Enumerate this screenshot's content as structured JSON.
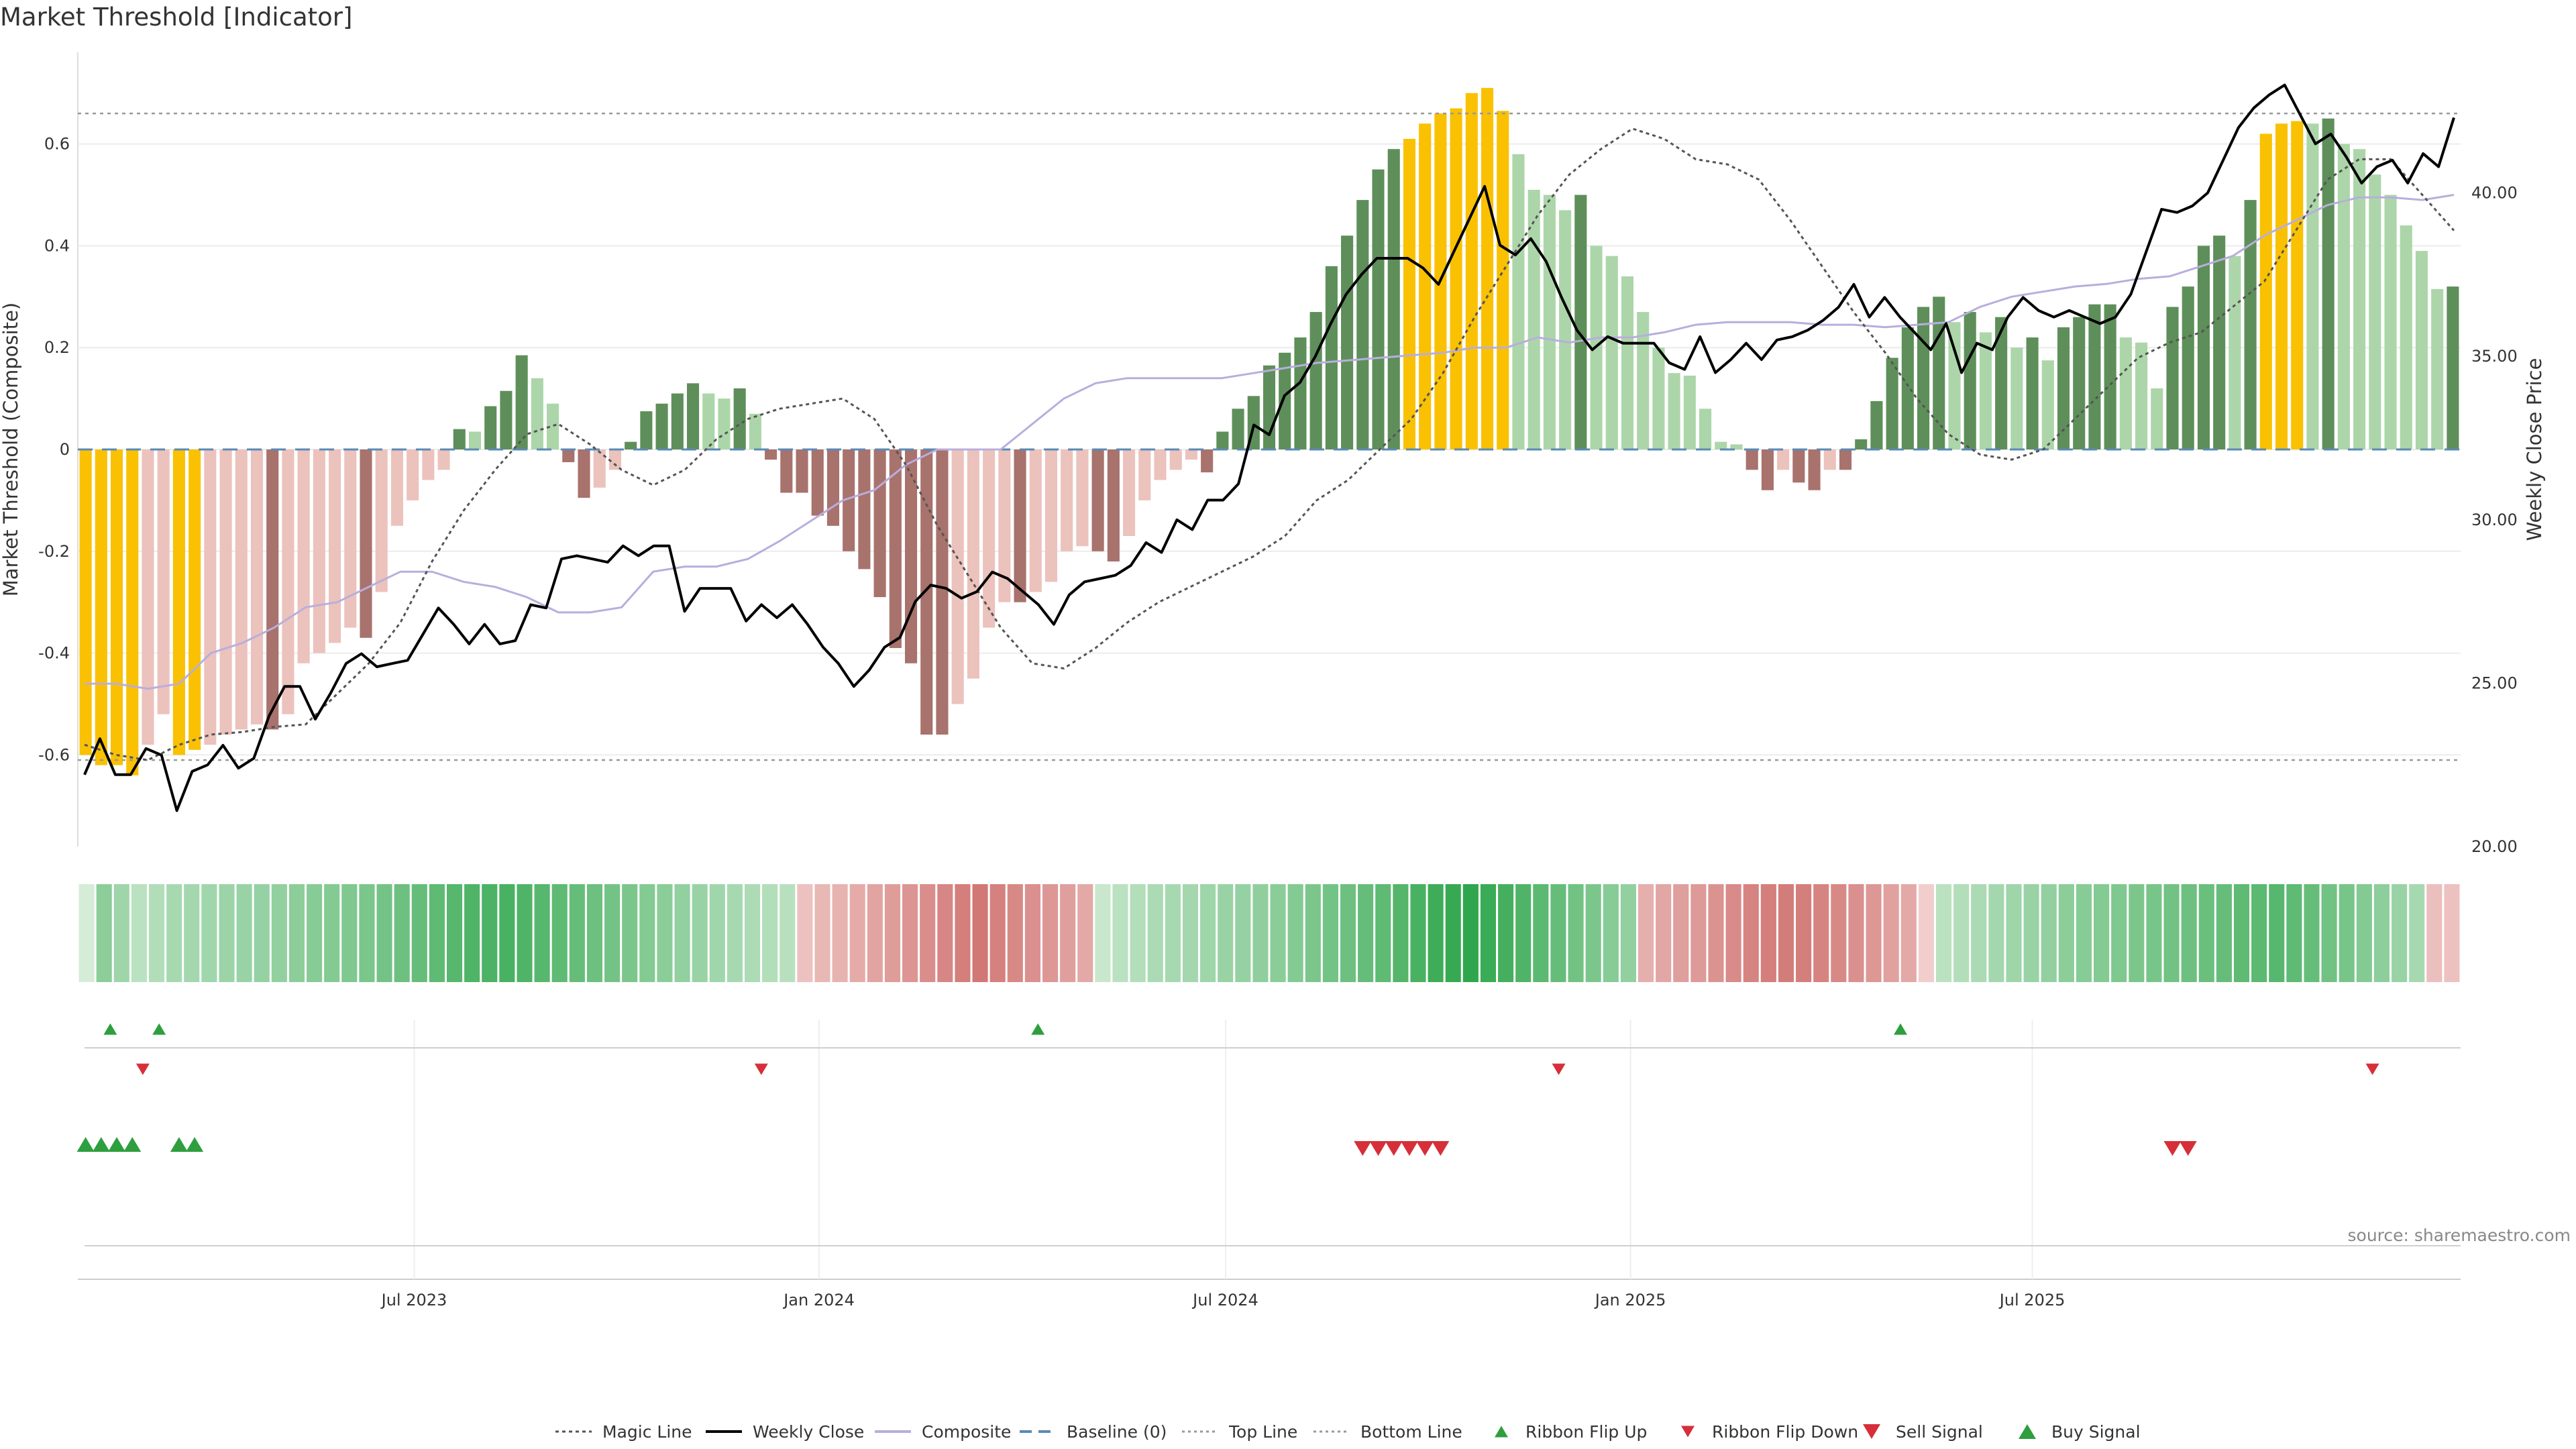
{
  "chart_data": {
    "type": "bar",
    "title": "Market Threshold [Indicator]",
    "ylabel": "Market Threshold (Composite)",
    "y2label": "Weekly Close Price",
    "ylim": [
      -0.78,
      0.78
    ],
    "y2lim": [
      20,
      44.3
    ],
    "yticks": [
      "-0.6",
      "-0.4",
      "-0.2",
      "0",
      "0.2",
      "0.4",
      "0.6"
    ],
    "y2ticks": [
      "20.00",
      "25.00",
      "30.00",
      "35.00",
      "40.00"
    ],
    "xticks": [
      "Jul 2023",
      "Jan 2024",
      "Jul 2024",
      "Jan 2025",
      "Jul 2025"
    ],
    "top_line": 0.66,
    "bottom_line": -0.61,
    "source": "source: sharemaestro.com",
    "legend": [
      "Magic Line",
      "Weekly Close",
      "Composite",
      "Baseline (0)",
      "Top Line",
      "Bottom Line",
      "Ribbon Flip Up",
      "Ribbon Flip Down",
      "Sell Signal",
      "Buy Signal"
    ],
    "colors": {
      "extreme": "#f9c102",
      "pos_strong": "#5e8f5a",
      "pos_weak": "#acd6a9",
      "neg_strong": "#a8726d",
      "neg_weak": "#ecc2bd",
      "close_line": "#000000",
      "composite_line": "#b8aedc",
      "magic_line": "#555555",
      "baseline": "#5a8ab5",
      "signal_up": "#2e9e3e",
      "signal_down": "#d62f3a"
    },
    "bars": [
      -0.6,
      -0.62,
      -0.62,
      -0.64,
      -0.58,
      -0.52,
      -0.6,
      -0.59,
      -0.58,
      -0.56,
      -0.55,
      -0.54,
      -0.55,
      -0.52,
      -0.42,
      -0.4,
      -0.38,
      -0.35,
      -0.37,
      -0.28,
      -0.15,
      -0.1,
      -0.06,
      -0.04,
      0.04,
      0.035,
      0.085,
      0.115,
      0.185,
      0.14,
      0.09,
      -0.025,
      -0.095,
      -0.075,
      -0.04,
      0.015,
      0.075,
      0.09,
      0.11,
      0.13,
      0.11,
      0.1,
      0.12,
      0.07,
      -0.02,
      -0.085,
      -0.085,
      -0.13,
      -0.15,
      -0.2,
      -0.235,
      -0.29,
      -0.39,
      -0.42,
      -0.56,
      -0.56,
      -0.5,
      -0.45,
      -0.35,
      -0.3,
      -0.3,
      -0.28,
      -0.26,
      -0.2,
      -0.19,
      -0.2,
      -0.22,
      -0.17,
      -0.1,
      -0.06,
      -0.04,
      -0.02,
      -0.045,
      0.035,
      0.08,
      0.105,
      0.165,
      0.19,
      0.22,
      0.27,
      0.36,
      0.42,
      0.49,
      0.55,
      0.59,
      0.61,
      0.64,
      0.66,
      0.67,
      0.7,
      0.71,
      0.665,
      0.58,
      0.51,
      0.5,
      0.47,
      0.5,
      0.4,
      0.38,
      0.34,
      0.27,
      0.2,
      0.15,
      0.145,
      0.08,
      0.015,
      0.01,
      -0.04,
      -0.08,
      -0.04,
      -0.065,
      -0.08,
      -0.04,
      -0.04,
      0.02,
      0.095,
      0.18,
      0.24,
      0.28,
      0.3,
      0.25,
      0.27,
      0.23,
      0.26,
      0.2,
      0.22,
      0.175,
      0.24,
      0.26,
      0.285,
      0.285,
      0.22,
      0.21,
      0.12,
      0.28,
      0.32,
      0.4,
      0.42,
      0.38,
      0.49,
      0.62,
      0.64,
      0.645,
      0.64,
      0.65,
      0.6,
      0.59,
      0.54,
      0.5,
      0.44,
      0.39,
      0.315,
      0.32
    ],
    "extreme_idx": [
      0,
      1,
      2,
      3,
      6,
      7,
      85,
      86,
      87,
      88,
      89,
      90,
      91,
      140,
      141,
      142
    ],
    "close": [
      22.2,
      23.3,
      22.2,
      22.2,
      23.0,
      22.8,
      21.1,
      22.3,
      22.5,
      23.1,
      22.4,
      22.7,
      24.0,
      24.9,
      24.9,
      23.9,
      24.7,
      25.6,
      25.9,
      25.5,
      25.6,
      25.7,
      26.5,
      27.3,
      26.8,
      26.2,
      26.8,
      26.2,
      26.3,
      27.4,
      27.3,
      28.8,
      28.9,
      28.8,
      28.7,
      29.2,
      28.9,
      29.2,
      29.2,
      27.2,
      27.9,
      27.9,
      27.9,
      26.9,
      27.4,
      27.0,
      27.4,
      26.8,
      26.1,
      25.6,
      24.9,
      25.4,
      26.1,
      26.4,
      27.5,
      28.0,
      27.9,
      27.6,
      27.8,
      28.4,
      28.2,
      27.8,
      27.4,
      26.8,
      27.7,
      28.1,
      28.2,
      28.3,
      28.6,
      29.3,
      29.0,
      30.0,
      29.7,
      30.6,
      30.6,
      31.1,
      32.9,
      32.6,
      33.8,
      34.2,
      35.0,
      36.0,
      36.9,
      37.5,
      38.0,
      38.0,
      38.0,
      37.7,
      37.2,
      38.2,
      39.2,
      40.2,
      38.4,
      38.1,
      38.6,
      37.9,
      36.8,
      35.8,
      35.2,
      35.6,
      35.4,
      35.4,
      35.4,
      34.8,
      34.6,
      35.6,
      34.5,
      34.9,
      35.4,
      34.9,
      35.5,
      35.6,
      35.8,
      36.1,
      36.5,
      37.2,
      36.2,
      36.8,
      36.2,
      35.7,
      35.2,
      36.0,
      34.5,
      35.4,
      35.2,
      36.2,
      36.8,
      36.4,
      36.2,
      36.4,
      36.2,
      36.0,
      36.2,
      36.9,
      38.2,
      39.5,
      39.4,
      39.6,
      40.0,
      41.0,
      42.0,
      42.6,
      43.0,
      43.3,
      42.4,
      41.5,
      41.8,
      41.1,
      40.3,
      40.8,
      41.0,
      40.3,
      41.2,
      40.8,
      42.3
    ],
    "composite_s": [
      -0.46,
      -0.46,
      -0.47,
      -0.46,
      -0.4,
      -0.38,
      -0.35,
      -0.31,
      -0.3,
      -0.27,
      -0.24,
      -0.24,
      -0.26,
      -0.27,
      -0.29,
      -0.32,
      -0.32,
      -0.31,
      -0.24,
      -0.23,
      -0.23,
      -0.215,
      -0.18,
      -0.14,
      -0.1,
      -0.08,
      -0.03,
      0.0,
      0.0,
      0.0,
      0.05,
      0.1,
      0.13,
      0.14,
      0.14,
      0.14,
      0.14,
      0.15,
      0.16,
      0.17,
      0.175,
      0.18,
      0.185,
      0.19,
      0.2,
      0.2,
      0.22,
      0.21,
      0.22,
      0.22,
      0.23,
      0.245,
      0.25,
      0.25,
      0.25,
      0.245,
      0.245,
      0.24,
      0.245,
      0.25,
      0.28,
      0.3,
      0.31,
      0.32,
      0.325,
      0.335,
      0.34,
      0.36,
      0.38,
      0.42,
      0.45,
      0.48,
      0.495,
      0.495,
      0.49,
      0.5
    ],
    "magic_s": [
      -0.58,
      -0.6,
      -0.61,
      -0.58,
      -0.56,
      -0.555,
      -0.545,
      -0.54,
      -0.48,
      -0.42,
      -0.34,
      -0.22,
      -0.12,
      -0.04,
      0.03,
      0.05,
      0.01,
      -0.04,
      -0.07,
      -0.04,
      0.02,
      0.06,
      0.08,
      0.09,
      0.1,
      0.06,
      -0.03,
      -0.15,
      -0.25,
      -0.35,
      -0.42,
      -0.43,
      -0.39,
      -0.34,
      -0.3,
      -0.27,
      -0.24,
      -0.21,
      -0.17,
      -0.1,
      -0.06,
      0.0,
      0.06,
      0.15,
      0.26,
      0.36,
      0.46,
      0.54,
      0.59,
      0.63,
      0.61,
      0.57,
      0.56,
      0.53,
      0.45,
      0.36,
      0.27,
      0.19,
      0.1,
      0.03,
      -0.01,
      -0.02,
      0.0,
      0.06,
      0.12,
      0.18,
      0.21,
      0.23,
      0.28,
      0.33,
      0.43,
      0.53,
      0.57,
      0.57,
      0.5,
      0.43
    ],
    "ribbon": [
      0.05,
      0.45,
      0.35,
      0.2,
      0.25,
      0.3,
      0.32,
      0.34,
      0.36,
      0.38,
      0.4,
      0.42,
      0.45,
      0.48,
      0.5,
      0.52,
      0.55,
      0.58,
      0.62,
      0.66,
      0.7,
      0.74,
      0.78,
      0.8,
      0.82,
      0.78,
      0.74,
      0.7,
      0.66,
      0.62,
      0.58,
      0.54,
      0.5,
      0.46,
      0.42,
      0.38,
      0.34,
      0.3,
      0.27,
      0.24,
      0.21,
      -0.2,
      -0.28,
      -0.32,
      -0.38,
      -0.44,
      -0.5,
      -0.56,
      -0.62,
      -0.68,
      -0.74,
      -0.8,
      -0.72,
      -0.66,
      -0.6,
      -0.54,
      -0.48,
      -0.4,
      0.12,
      0.2,
      0.24,
      0.28,
      0.3,
      0.32,
      0.35,
      0.38,
      0.4,
      0.43,
      0.46,
      0.5,
      0.54,
      0.58,
      0.62,
      0.66,
      0.7,
      0.76,
      0.82,
      0.88,
      0.92,
      0.96,
      0.9,
      0.84,
      0.78,
      0.72,
      0.66,
      0.6,
      0.54,
      0.48,
      0.42,
      -0.35,
      -0.42,
      -0.48,
      -0.52,
      -0.58,
      -0.64,
      -0.7,
      -0.74,
      -0.76,
      -0.74,
      -0.7,
      -0.66,
      -0.6,
      -0.54,
      -0.46,
      -0.4,
      -0.1,
      0.2,
      0.24,
      0.28,
      0.32,
      0.35,
      0.38,
      0.42,
      0.45,
      0.48,
      0.5,
      0.52,
      0.54,
      0.56,
      0.6,
      0.62,
      0.64,
      0.66,
      0.7,
      0.72,
      0.74,
      0.7,
      0.66,
      0.6,
      0.56,
      0.5,
      0.44,
      0.38,
      0.3,
      -0.22,
      -0.2
    ],
    "flip_up_idx": [
      1,
      4,
      58,
      111
    ],
    "flip_down_idx": [
      3,
      41,
      90,
      140
    ],
    "buy_signal_idx": [
      0,
      1,
      2,
      3,
      6,
      7
    ],
    "sell_signal_idx": [
      82,
      83,
      84,
      85,
      86,
      87,
      134,
      135
    ]
  }
}
